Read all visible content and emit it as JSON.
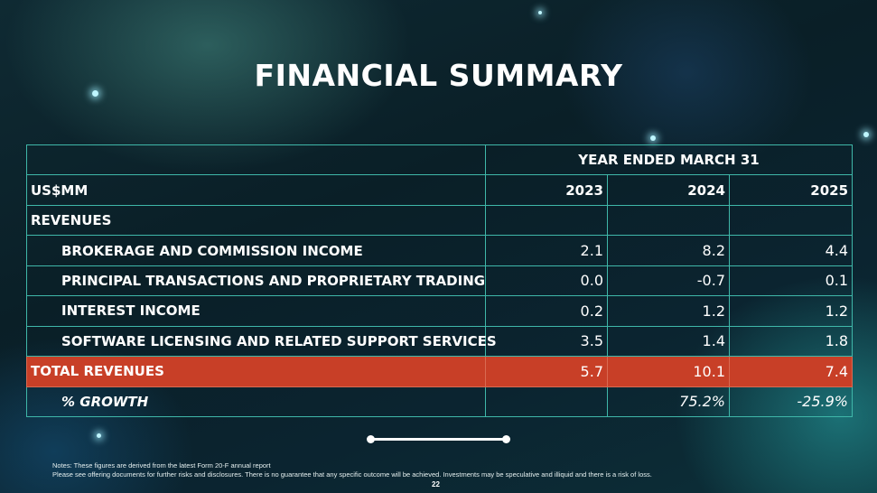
{
  "title": "FINANCIAL SUMMARY",
  "table": {
    "period_header": "YEAR ENDED MARCH 31",
    "unit_label": "US$MM",
    "years": [
      "2023",
      "2024",
      "2025"
    ],
    "section_label": "REVENUES",
    "rows": [
      {
        "label": "BROKERAGE AND COMMISSION INCOME",
        "values": [
          "2.1",
          "8.2",
          "4.4"
        ]
      },
      {
        "label": "PRINCIPAL TRANSACTIONS AND PROPRIETARY TRADING",
        "values": [
          "0.0",
          "-0.7",
          "0.1"
        ]
      },
      {
        "label": "INTEREST INCOME",
        "values": [
          "0.2",
          "1.2",
          "1.2"
        ]
      },
      {
        "label": "SOFTWARE LICENSING AND RELATED SUPPORT SERVICES",
        "values": [
          "3.5",
          "1.4",
          "1.8"
        ]
      }
    ],
    "total": {
      "label": "TOTAL REVENUES",
      "values": [
        "5.7",
        "10.1",
        "7.4"
      ]
    },
    "growth": {
      "label": "% GROWTH",
      "values": [
        "",
        "75.2%",
        "-25.9%"
      ]
    }
  },
  "colors": {
    "accent_border": "#3fb7a9",
    "total_row": "#c83f27"
  },
  "notes": {
    "line1": "Notes: These figures are derived from the latest Form 20-F annual report",
    "line2": "Please see offering documents for further risks and disclosures. There is no guarantee that any specific outcome will be achieved. Investments may be speculative and illiquid and there is a risk of loss."
  },
  "page_number": "22"
}
